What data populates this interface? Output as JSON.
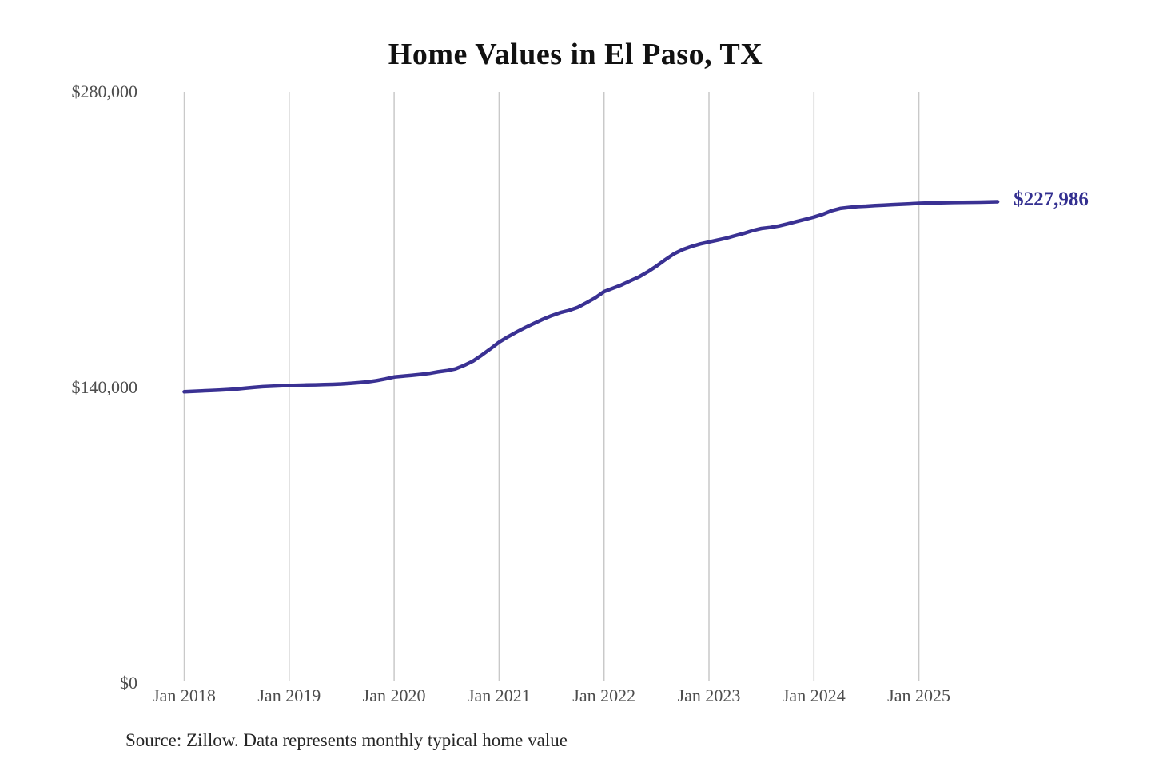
{
  "page": {
    "background": "#ffffff"
  },
  "chart_data": {
    "type": "line",
    "title": "Home Values in El Paso, TX",
    "source_note": "Source: Zillow. Data represents monthly typical home value",
    "end_label": "$227,986",
    "end_value": 227986,
    "line_color": "#3a3193",
    "end_label_color": "#332f90",
    "gridline_color": "#c9c9c9",
    "tick_label_color": "#4d4d4d",
    "grid": "vertical-only",
    "legend": "none",
    "y_axis": {
      "min": 0,
      "max": 280000,
      "ticks": [
        {
          "label": "$280,000",
          "value": 280000
        },
        {
          "label": "$140,000",
          "value": 140000
        },
        {
          "label": "$0",
          "value": 0
        }
      ]
    },
    "x_axis": {
      "tick_labels": [
        "Jan 2018",
        "Jan 2019",
        "Jan 2020",
        "Jan 2021",
        "Jan 2022",
        "Jan 2023",
        "Jan 2024",
        "Jan 2025"
      ]
    },
    "series": [
      {
        "name": "Monthly typical home value",
        "x": [
          "2018-01",
          "2018-02",
          "2018-03",
          "2018-04",
          "2018-05",
          "2018-06",
          "2018-07",
          "2018-08",
          "2018-09",
          "2018-10",
          "2018-11",
          "2018-12",
          "2019-01",
          "2019-02",
          "2019-03",
          "2019-04",
          "2019-05",
          "2019-06",
          "2019-07",
          "2019-08",
          "2019-09",
          "2019-10",
          "2019-11",
          "2019-12",
          "2020-01",
          "2020-02",
          "2020-03",
          "2020-04",
          "2020-05",
          "2020-06",
          "2020-07",
          "2020-08",
          "2020-09",
          "2020-10",
          "2020-11",
          "2020-12",
          "2021-01",
          "2021-02",
          "2021-03",
          "2021-04",
          "2021-05",
          "2021-06",
          "2021-07",
          "2021-08",
          "2021-09",
          "2021-10",
          "2021-11",
          "2021-12",
          "2022-01",
          "2022-02",
          "2022-03",
          "2022-04",
          "2022-05",
          "2022-06",
          "2022-07",
          "2022-08",
          "2022-09",
          "2022-10",
          "2022-11",
          "2022-12",
          "2023-01",
          "2023-02",
          "2023-03",
          "2023-04",
          "2023-05",
          "2023-06",
          "2023-07",
          "2023-08",
          "2023-09",
          "2023-10",
          "2023-11",
          "2023-12",
          "2024-01",
          "2024-02",
          "2024-03",
          "2024-04",
          "2024-05",
          "2024-06",
          "2024-07",
          "2024-08",
          "2024-09",
          "2024-10",
          "2024-11",
          "2024-12",
          "2025-01",
          "2025-02",
          "2025-03",
          "2025-04",
          "2025-05",
          "2025-06",
          "2025-07",
          "2025-08",
          "2025-09",
          "2025-10"
        ],
        "values": [
          138000,
          138200,
          138400,
          138600,
          138800,
          139000,
          139300,
          139700,
          140100,
          140400,
          140600,
          140800,
          141000,
          141100,
          141200,
          141300,
          141400,
          141500,
          141700,
          142000,
          142300,
          142700,
          143300,
          144100,
          145000,
          145400,
          145800,
          146200,
          146700,
          147400,
          148000,
          148800,
          150500,
          152500,
          155300,
          158300,
          161500,
          164000,
          166300,
          168400,
          170400,
          172300,
          174000,
          175500,
          176500,
          178000,
          180200,
          182500,
          185400,
          187000,
          188600,
          190500,
          192400,
          194800,
          197500,
          200500,
          203300,
          205300,
          206800,
          208000,
          208900,
          209800,
          210700,
          211900,
          213000,
          214300,
          215300,
          215800,
          216500,
          217500,
          218600,
          219600,
          220700,
          222000,
          223700,
          224800,
          225300,
          225700,
          225900,
          226200,
          226400,
          226600,
          226800,
          227000,
          227200,
          227350,
          227450,
          227550,
          227650,
          227700,
          227750,
          227800,
          227900,
          227986
        ]
      }
    ]
  }
}
